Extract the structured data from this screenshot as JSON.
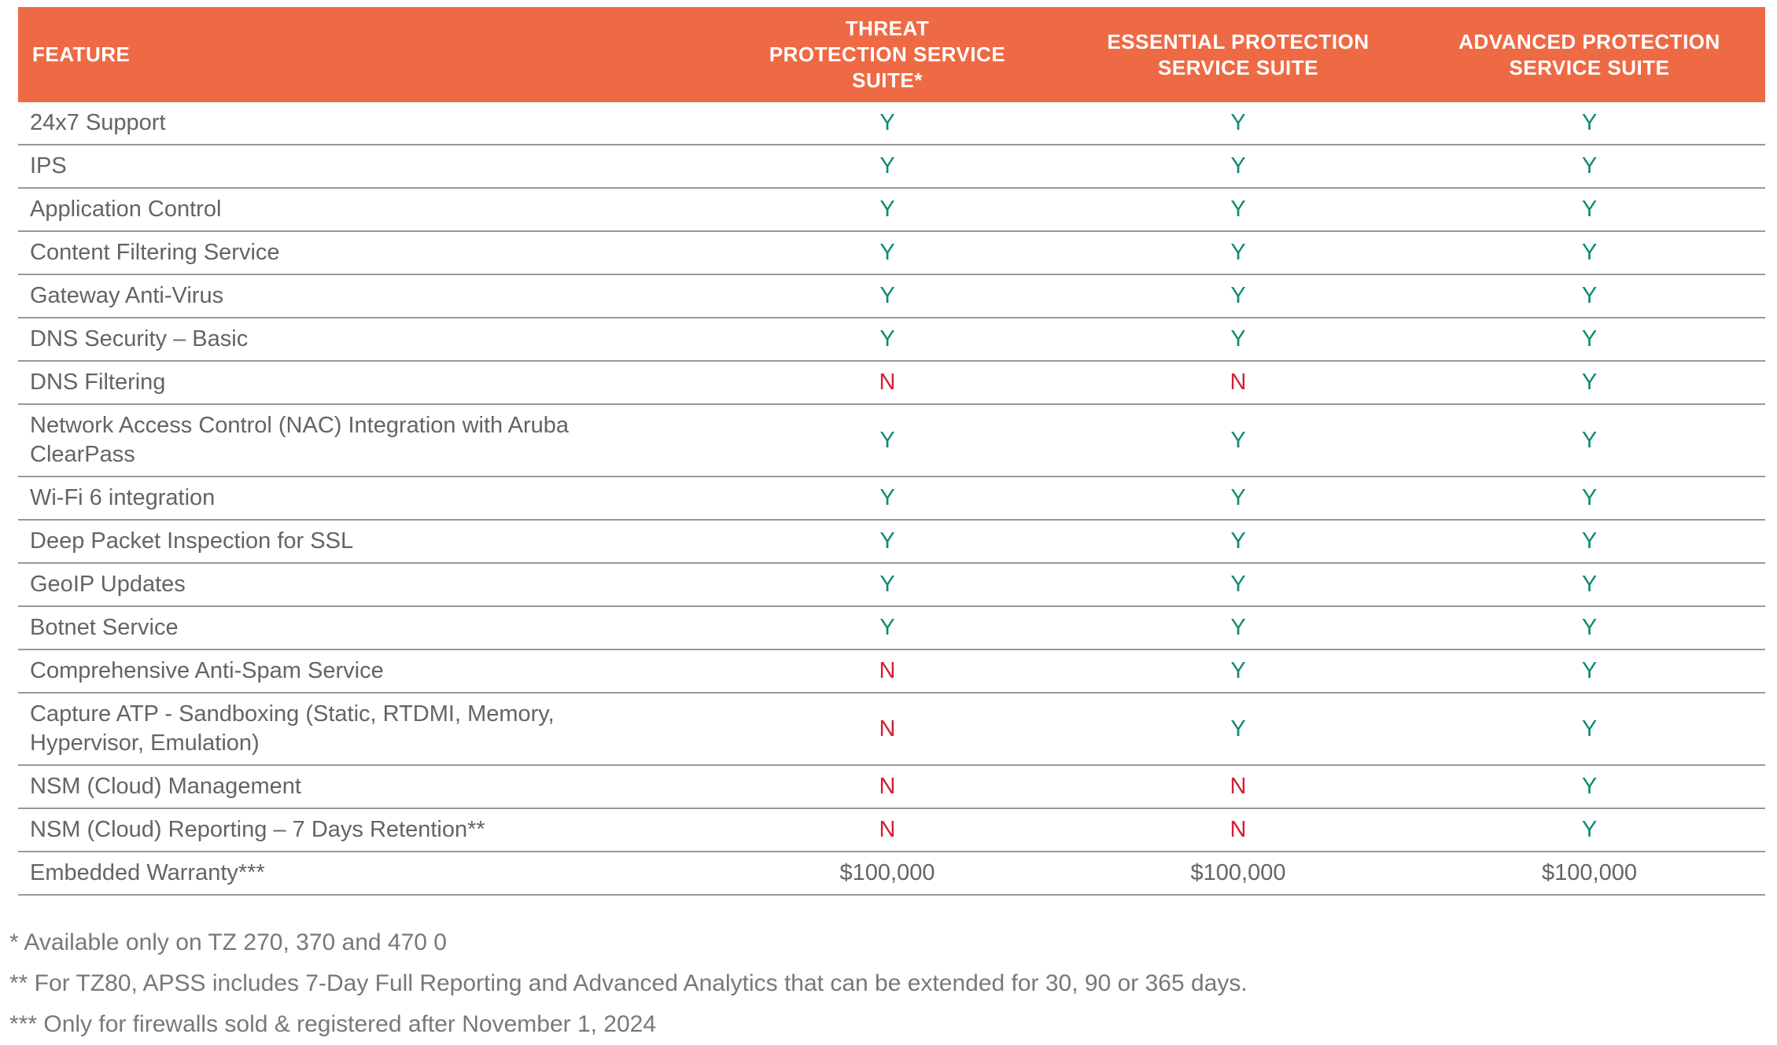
{
  "colors": {
    "header_bg": "#EE6A45",
    "header_text": "#FFFFFF",
    "row_text": "#636466",
    "yes_green": "#0E8B72",
    "no_red": "#D3202E",
    "row_border": "#97989A",
    "footnote_text": "#77787B"
  },
  "table": {
    "columns": [
      {
        "label": "FEATURE"
      },
      {
        "label": "THREAT\nPROTECTION SERVICE\nSUITE*"
      },
      {
        "label": "ESSENTIAL PROTECTION\nSERVICE SUITE"
      },
      {
        "label": "ADVANCED PROTECTION\nSERVICE SUITE"
      }
    ],
    "rows": [
      {
        "feature": "24x7 Support",
        "values": [
          "Y",
          "Y",
          "Y"
        ]
      },
      {
        "feature": "IPS",
        "values": [
          "Y",
          "Y",
          "Y"
        ]
      },
      {
        "feature": "Application Control",
        "values": [
          "Y",
          "Y",
          "Y"
        ]
      },
      {
        "feature": "Content Filtering Service",
        "values": [
          "Y",
          "Y",
          "Y"
        ]
      },
      {
        "feature": "Gateway Anti-Virus",
        "values": [
          "Y",
          "Y",
          "Y"
        ]
      },
      {
        "feature": "DNS Security – Basic",
        "values": [
          "Y",
          "Y",
          "Y"
        ]
      },
      {
        "feature": "DNS Filtering",
        "values": [
          "N",
          "N",
          "Y"
        ]
      },
      {
        "feature": "Network Access Control (NAC) Integration with Aruba ClearPass",
        "values": [
          "Y",
          "Y",
          "Y"
        ]
      },
      {
        "feature": "Wi-Fi 6 integration",
        "values": [
          "Y",
          "Y",
          "Y"
        ]
      },
      {
        "feature": "Deep Packet Inspection for SSL",
        "values": [
          "Y",
          "Y",
          "Y"
        ]
      },
      {
        "feature": "GeoIP Updates",
        "values": [
          "Y",
          "Y",
          "Y"
        ]
      },
      {
        "feature": "Botnet Service",
        "values": [
          "Y",
          "Y",
          "Y"
        ]
      },
      {
        "feature": "Comprehensive Anti-Spam Service",
        "values": [
          "N",
          "Y",
          "Y"
        ]
      },
      {
        "feature": "Capture ATP -  Sandboxing (Static, RTDMI, Memory, Hypervisor, Emulation)",
        "values": [
          "N",
          "Y",
          "Y"
        ]
      },
      {
        "feature": "NSM (Cloud) Management",
        "values": [
          "N",
          "N",
          "Y"
        ]
      },
      {
        "feature": "NSM (Cloud) Reporting – 7 Days Retention**",
        "values": [
          "N",
          "N",
          "Y"
        ]
      },
      {
        "feature": "Embedded Warranty***",
        "values": [
          "$100,000",
          "$100,000",
          "$100,000"
        ]
      }
    ]
  },
  "footnotes": [
    "* Available only on TZ 270, 370 and 470 0",
    "** For TZ80, APSS includes 7-Day Full Reporting and Advanced Analytics that can be extended for 30, 90 or 365 days.",
    "*** Only for firewalls sold & registered after November 1, 2024"
  ]
}
